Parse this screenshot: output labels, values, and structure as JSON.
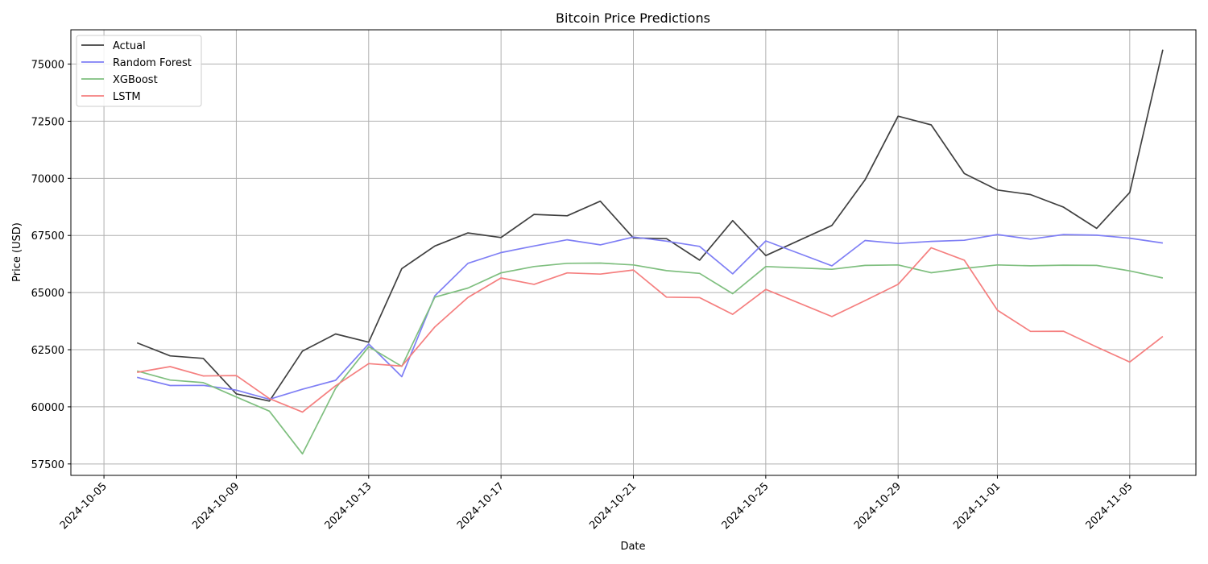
{
  "chart_data": {
    "type": "line",
    "title": "Bitcoin Price Predictions",
    "xlabel": "Date",
    "ylabel": "Price (USD)",
    "x_dates": [
      "2024-10-06",
      "2024-10-07",
      "2024-10-08",
      "2024-10-09",
      "2024-10-10",
      "2024-10-11",
      "2024-10-12",
      "2024-10-13",
      "2024-10-14",
      "2024-10-15",
      "2024-10-16",
      "2024-10-17",
      "2024-10-18",
      "2024-10-19",
      "2024-10-20",
      "2024-10-21",
      "2024-10-22",
      "2024-10-23",
      "2024-10-24",
      "2024-10-25",
      "2024-10-27",
      "2024-10-28",
      "2024-10-29",
      "2024-10-30",
      "2024-10-31",
      "2024-11-01",
      "2024-11-02",
      "2024-11-03",
      "2024-11-04",
      "2024-11-05",
      "2024-11-06"
    ],
    "x_ticks": [
      "2024-10-05",
      "2024-10-09",
      "2024-10-13",
      "2024-10-17",
      "2024-10-21",
      "2024-10-25",
      "2024-10-29",
      "2024-11-01",
      "2024-11-05"
    ],
    "xlim": [
      "2024-10-04",
      "2024-11-07"
    ],
    "ylim": [
      57000,
      76500
    ],
    "y_ticks": [
      57500,
      60000,
      62500,
      65000,
      67500,
      70000,
      72500,
      75000
    ],
    "grid": true,
    "legend_position": "top-left",
    "series": [
      {
        "name": "Actual",
        "color": "#404040",
        "values": [
          62800,
          62230,
          62120,
          60570,
          60250,
          62440,
          63190,
          62830,
          66050,
          67040,
          67610,
          67410,
          68420,
          68360,
          69000,
          67390,
          67360,
          66420,
          68150,
          66620,
          67940,
          69930,
          72720,
          72340,
          70210,
          69490,
          69290,
          68740,
          67810,
          69380,
          75630
        ]
      },
      {
        "name": "Random Forest",
        "color": "#7f7ff5",
        "values": [
          61290,
          60930,
          60940,
          60730,
          60330,
          60770,
          61160,
          62750,
          61320,
          64860,
          66280,
          66750,
          67040,
          67310,
          67090,
          67430,
          67250,
          67020,
          65820,
          67260,
          66170,
          67280,
          67150,
          67240,
          67290,
          67540,
          67340,
          67540,
          67510,
          67380,
          67170
        ]
      },
      {
        "name": "XGBoost",
        "color": "#7fbf7f",
        "values": [
          61570,
          61170,
          61060,
          60430,
          59810,
          57940,
          60810,
          62630,
          61770,
          64800,
          65200,
          65860,
          66140,
          66280,
          66290,
          66210,
          65960,
          65840,
          64950,
          66140,
          66020,
          66190,
          66210,
          65870,
          66060,
          66210,
          66170,
          66200,
          66190,
          65950,
          65640
        ]
      },
      {
        "name": "LSTM",
        "color": "#f57f7f",
        "values": [
          61510,
          61760,
          61350,
          61370,
          60360,
          59770,
          60920,
          61890,
          61780,
          63500,
          64790,
          65640,
          65360,
          65860,
          65810,
          65990,
          64800,
          64780,
          64050,
          65140,
          63950,
          64650,
          65360,
          66960,
          66420,
          64230,
          63300,
          63310,
          62620,
          61960,
          63080
        ]
      }
    ]
  }
}
